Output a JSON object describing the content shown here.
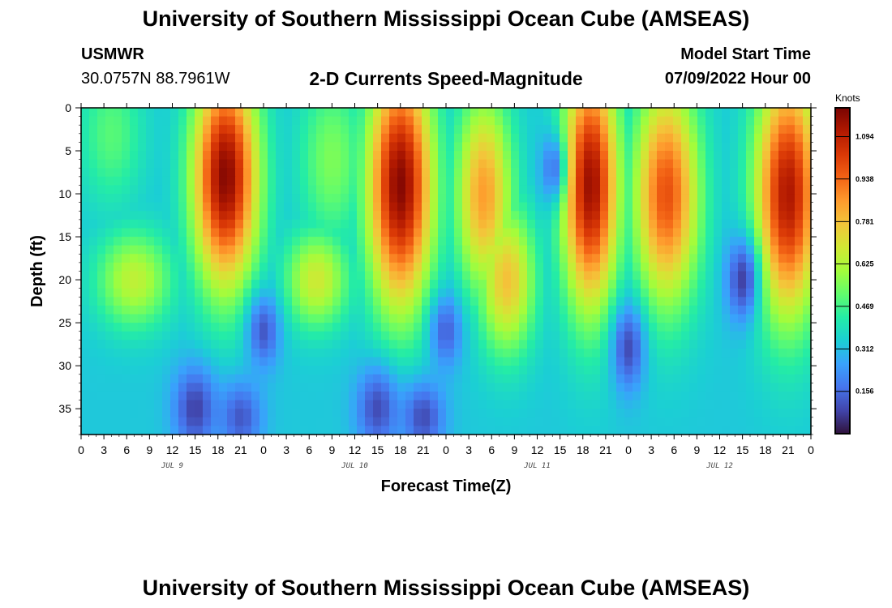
{
  "header": {
    "title": "University of Southern Mississippi Ocean Cube (AMSEAS)",
    "station_id": "USMWR",
    "coordinates": "30.0757N  88.7961W",
    "plot_title": "2-D Currents Speed-Magnitude",
    "model_start_label": "Model Start Time",
    "model_start_value": "07/09/2022 Hour 00"
  },
  "footer": {
    "title": "University of Southern Mississippi Ocean Cube (AMSEAS)"
  },
  "chart_data": {
    "type": "heatmap",
    "title": "2-D Currents Speed-Magnitude",
    "xlabel": "Forecast Time(Z)",
    "ylabel": "Depth (ft)",
    "x_range_hours": [
      0,
      96
    ],
    "xlim": [
      0,
      96
    ],
    "ylim": [
      0,
      38
    ],
    "y_inverted": true,
    "x_tick_hours": [
      0,
      3,
      6,
      9,
      12,
      15,
      18,
      21,
      24,
      27,
      30,
      33,
      36,
      39,
      42,
      45,
      48,
      51,
      54,
      57,
      60,
      63,
      66,
      69,
      72,
      75,
      78,
      81,
      84,
      87,
      90,
      93,
      96
    ],
    "x_tick_labels": [
      "0",
      "3",
      "6",
      "9",
      "12",
      "15",
      "18",
      "21",
      "0",
      "3",
      "6",
      "9",
      "12",
      "15",
      "18",
      "21",
      "0",
      "3",
      "6",
      "9",
      "12",
      "15",
      "18",
      "21",
      "0",
      "3",
      "6",
      "9",
      "12",
      "15",
      "18",
      "21",
      "0"
    ],
    "date_labels": [
      {
        "hour": 12,
        "label": "JUL 9"
      },
      {
        "hour": 36,
        "label": "JUL 10"
      },
      {
        "hour": 60,
        "label": "JUL 11"
      },
      {
        "hour": 84,
        "label": "JUL 12"
      }
    ],
    "y_ticks": [
      0,
      5,
      10,
      15,
      20,
      25,
      30,
      35
    ],
    "y_tick_labels": [
      "0",
      "5",
      "10",
      "15",
      "20",
      "25",
      "30",
      "35"
    ],
    "colorbar": {
      "unit": "Knots",
      "min": 0,
      "max": 1.2,
      "ticks": [
        0.156,
        0.312,
        0.469,
        0.625,
        0.781,
        0.938,
        1.094
      ],
      "tick_labels": [
        "0.156",
        "0.312",
        "0.469",
        "0.625",
        "0.781",
        "0.938",
        "1.094"
      ]
    },
    "colormap": [
      "#30123b",
      "#4145ab",
      "#4675ed",
      "#39a2fc",
      "#1bcfd4",
      "#24eca6",
      "#61fc6c",
      "#a4fc3b",
      "#d1e834",
      "#f3c63a",
      "#fe9b2d",
      "#f36315",
      "#d93806",
      "#b11901",
      "#7a0402"
    ],
    "speed_model": {
      "background": 0.33,
      "blobs": [
        {
          "hour": 7,
          "depth": 20,
          "sigma_hour": 3.5,
          "sigma_depth": 4.0,
          "value": 0.65
        },
        {
          "hour": 4,
          "depth": 3,
          "sigma_hour": 3.0,
          "sigma_depth": 6.0,
          "value": 0.5
        },
        {
          "hour": 19,
          "depth": 8,
          "sigma_hour": 3.0,
          "sigma_depth": 9.0,
          "value": 1.18
        },
        {
          "hour": 33,
          "depth": 6,
          "sigma_hour": 3.0,
          "sigma_depth": 7.0,
          "value": 0.55
        },
        {
          "hour": 31,
          "depth": 20,
          "sigma_hour": 3.0,
          "sigma_depth": 4.0,
          "value": 0.68
        },
        {
          "hour": 42,
          "depth": 9,
          "sigma_hour": 3.0,
          "sigma_depth": 10.0,
          "value": 1.18
        },
        {
          "hour": 53,
          "depth": 10,
          "sigma_hour": 2.6,
          "sigma_depth": 8.0,
          "value": 0.85
        },
        {
          "hour": 56,
          "depth": 20,
          "sigma_hour": 2.6,
          "sigma_depth": 6.0,
          "value": 0.78
        },
        {
          "hour": 67,
          "depth": 9,
          "sigma_hour": 2.6,
          "sigma_depth": 10.0,
          "value": 1.15
        },
        {
          "hour": 77,
          "depth": 10,
          "sigma_hour": 3.0,
          "sigma_depth": 9.0,
          "value": 0.98
        },
        {
          "hour": 93,
          "depth": 10,
          "sigma_hour": 3.0,
          "sigma_depth": 10.0,
          "value": 1.12
        }
      ],
      "lows": [
        {
          "hour": 24,
          "depth": 26,
          "sigma_hour": 1.5,
          "sigma_depth": 3.0,
          "value": 0.12
        },
        {
          "hour": 48,
          "depth": 26,
          "sigma_hour": 1.5,
          "sigma_depth": 3.0,
          "value": 0.14
        },
        {
          "hour": 72,
          "depth": 28,
          "sigma_hour": 1.5,
          "sigma_depth": 3.5,
          "value": 0.1
        },
        {
          "hour": 87,
          "depth": 20,
          "sigma_hour": 1.5,
          "sigma_depth": 3.5,
          "value": 0.08
        },
        {
          "hour": 62,
          "depth": 7,
          "sigma_hour": 1.2,
          "sigma_depth": 3.0,
          "value": 0.18
        },
        {
          "hour": 15,
          "depth": 35,
          "sigma_hour": 2.0,
          "sigma_depth": 3.5,
          "value": 0.08
        },
        {
          "hour": 39,
          "depth": 35,
          "sigma_hour": 2.0,
          "sigma_depth": 3.5,
          "value": 0.1
        },
        {
          "hour": 45,
          "depth": 36,
          "sigma_hour": 2.0,
          "sigma_depth": 3.0,
          "value": 0.1
        },
        {
          "hour": 21,
          "depth": 36,
          "sigma_hour": 2.0,
          "sigma_depth": 3.0,
          "value": 0.12
        }
      ]
    }
  }
}
